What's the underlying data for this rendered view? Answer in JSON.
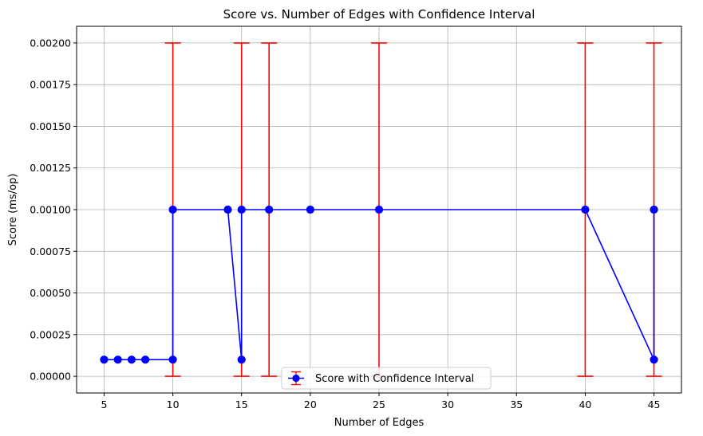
{
  "chart_data": {
    "type": "line",
    "title": "Score vs. Number of Edges with Confidence Interval",
    "xlabel": "Number of Edges",
    "ylabel": "Score (ms/op)",
    "xlim": [
      3,
      47
    ],
    "ylim": [
      -0.0001,
      0.0021
    ],
    "xticks": [
      5,
      10,
      15,
      20,
      25,
      30,
      35,
      40,
      45
    ],
    "yticks": [
      0.0,
      0.00025,
      0.0005,
      0.00075,
      0.001,
      0.00125,
      0.0015,
      0.00175,
      0.002
    ],
    "ytick_labels": [
      "0.00000",
      "0.00025",
      "0.00050",
      "0.00075",
      "0.00100",
      "0.00125",
      "0.00150",
      "0.00175",
      "0.00200"
    ],
    "grid": true,
    "legend_position": "bottom-center",
    "series": [
      {
        "name": "Score with Confidence Interval",
        "color": "#0000ff",
        "errorbar_color": "#ff0000",
        "marker": "circle",
        "points": [
          {
            "x": 5,
            "y": 0.0001
          },
          {
            "x": 6,
            "y": 0.0001
          },
          {
            "x": 7,
            "y": 0.0001
          },
          {
            "x": 8,
            "y": 0.0001
          },
          {
            "x": 10,
            "y": 0.0001
          },
          {
            "x": 10,
            "y": 0.001,
            "err_low": 0.0,
            "err_high": 0.002
          },
          {
            "x": 14,
            "y": 0.001
          },
          {
            "x": 15,
            "y": 0.0001
          },
          {
            "x": 15,
            "y": 0.001,
            "err_low": 0.0,
            "err_high": 0.002
          },
          {
            "x": 17,
            "y": 0.001,
            "err_low": 0.0,
            "err_high": 0.002
          },
          {
            "x": 20,
            "y": 0.001
          },
          {
            "x": 25,
            "y": 0.001,
            "err_low": 0.0,
            "err_high": 0.002
          },
          {
            "x": 40,
            "y": 0.001,
            "err_low": 0.0,
            "err_high": 0.002
          },
          {
            "x": 45,
            "y": 0.0001
          },
          {
            "x": 45,
            "y": 0.001,
            "err_low": 0.0,
            "err_high": 0.002
          }
        ]
      }
    ]
  }
}
